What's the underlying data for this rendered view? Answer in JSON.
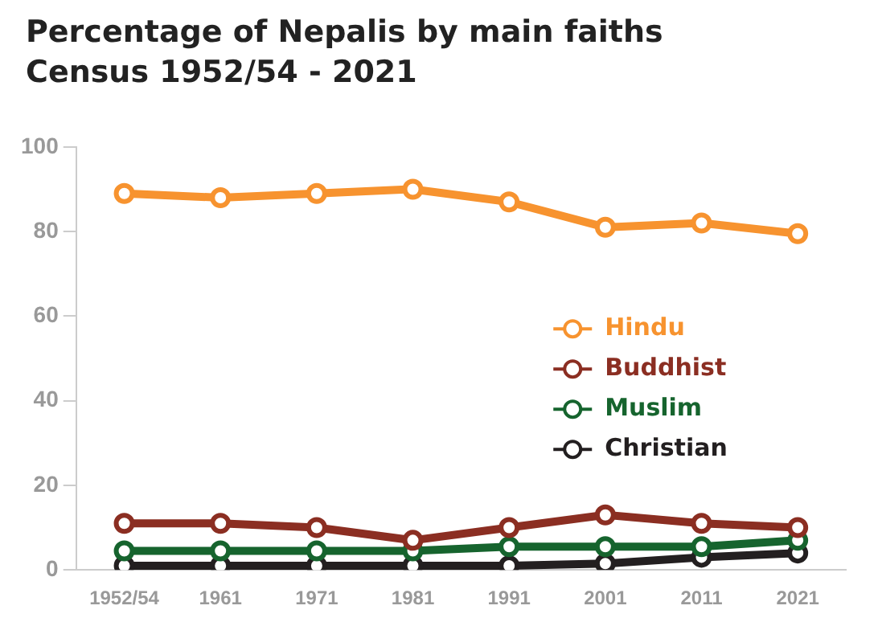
{
  "chart_data": {
    "type": "line",
    "title": "Percentage of Nepalis by main faiths",
    "subtitle": "Census 1952/54 - 2021",
    "categories": [
      "1952/54",
      "1961",
      "1971",
      "1981",
      "1991",
      "2001",
      "2011",
      "2021"
    ],
    "series": [
      {
        "name": "Hindu",
        "color": "#f7932f",
        "values": [
          89,
          88,
          89,
          90,
          87,
          81,
          82,
          79.5
        ]
      },
      {
        "name": "Buddhist",
        "color": "#8b2e22",
        "values": [
          11,
          11,
          10,
          7,
          10,
          13,
          11,
          10
        ]
      },
      {
        "name": "Muslim",
        "color": "#16642e",
        "values": [
          4.5,
          4.5,
          4.5,
          4.5,
          5.5,
          5.5,
          5.5,
          7
        ]
      },
      {
        "name": "Christian",
        "color": "#231f20",
        "values": [
          1,
          1,
          1,
          1,
          1,
          1.5,
          3,
          4
        ]
      }
    ],
    "ylim": [
      0,
      100
    ],
    "yticks": [
      0,
      20,
      40,
      60,
      80,
      100
    ],
    "grid": false,
    "legend": "right",
    "marker": "circle",
    "line_style": "solid"
  }
}
